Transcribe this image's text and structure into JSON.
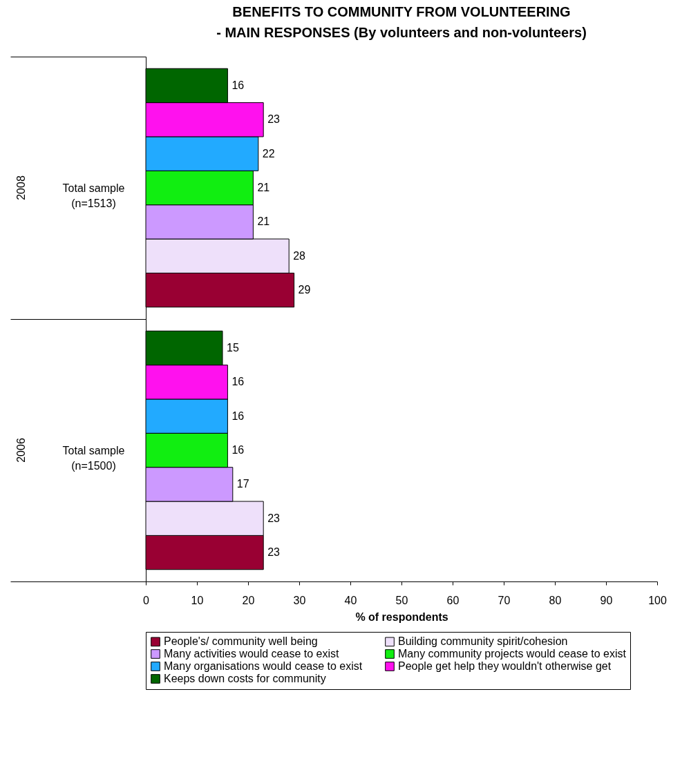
{
  "chart_data": {
    "type": "bar",
    "orientation": "horizontal",
    "title": [
      "BENEFITS TO COMMUNITY FROM VOLUNTEERING",
      "- MAIN RESPONSES (By volunteers and non-volunteers)"
    ],
    "categories": [
      "Total sample (n=1513)",
      "Total sample (n=1500)"
    ],
    "annotations": [
      "2008",
      "2006"
    ],
    "xlabel": "% of respondents",
    "series": [
      {
        "name": "People's/ community well being",
        "color": "#990033",
        "values": [
          29,
          23
        ]
      },
      {
        "name": "Building community spirit/cohesion",
        "color": "#eee0fa",
        "values": [
          28,
          23
        ]
      },
      {
        "name": "Many activities would cease to exist",
        "color": "#cc99ff",
        "values": [
          21,
          17
        ]
      },
      {
        "name": "Many community projects would cease to exist",
        "color": "#11ee11",
        "values": [
          21,
          16
        ]
      },
      {
        "name": "Many organisations would cease to exist",
        "color": "#22aaff",
        "values": [
          22,
          16
        ]
      },
      {
        "name": "People get help they wouldn't otherwise get",
        "color": "#ff11ee",
        "values": [
          23,
          16
        ]
      },
      {
        "name": "Keeps down costs for community",
        "color": "#006600",
        "values": [
          16,
          15
        ]
      }
    ],
    "xlim": [
      0,
      100
    ],
    "xticks": [
      0,
      10,
      20,
      30,
      40,
      50,
      60,
      70,
      80,
      90,
      100
    ],
    "grid": false,
    "legend": "bottom",
    "data_labels": true
  }
}
